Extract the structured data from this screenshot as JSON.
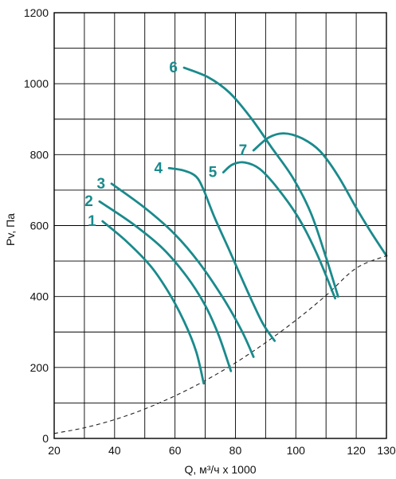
{
  "chart_data": {
    "type": "line",
    "title": "",
    "xlabel": "Q, м³/ч х 1000",
    "ylabel": "Pv, Па",
    "xlim": [
      20,
      130
    ],
    "ylim": [
      0,
      1200
    ],
    "x_ticks": [
      20,
      40,
      60,
      80,
      100,
      120,
      130
    ],
    "y_ticks": [
      0,
      200,
      400,
      600,
      800,
      1000,
      1200
    ],
    "x_tick_labels": [
      "20",
      "40",
      "60",
      "80",
      "100",
      "120",
      "130"
    ],
    "y_tick_labels": [
      "0",
      "200",
      "400",
      "600",
      "800",
      "1000",
      "1200"
    ],
    "grid": true,
    "curve_color": "#1a8a8c",
    "system_curve_color": "#222222",
    "series": [
      {
        "label": "1",
        "points": [
          [
            36,
            612
          ],
          [
            44,
            555
          ],
          [
            52,
            485
          ],
          [
            58,
            410
          ],
          [
            63,
            330
          ],
          [
            67,
            245
          ],
          [
            69.5,
            155
          ]
        ]
      },
      {
        "label": "2",
        "points": [
          [
            35,
            668
          ],
          [
            46,
            605
          ],
          [
            56,
            535
          ],
          [
            64,
            455
          ],
          [
            70,
            375
          ],
          [
            74.5,
            290
          ],
          [
            78.5,
            190
          ]
        ]
      },
      {
        "label": "3",
        "points": [
          [
            39,
            718
          ],
          [
            50,
            650
          ],
          [
            60,
            575
          ],
          [
            68,
            495
          ],
          [
            76,
            395
          ],
          [
            82,
            305
          ],
          [
            86,
            230
          ]
        ]
      },
      {
        "label": "4",
        "points": [
          [
            58,
            762
          ],
          [
            63,
            755
          ],
          [
            67,
            738
          ],
          [
            69.5,
            700
          ],
          [
            73,
            625
          ],
          [
            78,
            530
          ],
          [
            84,
            415
          ],
          [
            89,
            325
          ],
          [
            93,
            275
          ]
        ]
      },
      {
        "label": "5",
        "points": [
          [
            76,
            750
          ],
          [
            79,
            772
          ],
          [
            83,
            778
          ],
          [
            88,
            760
          ],
          [
            94,
            705
          ],
          [
            101,
            620
          ],
          [
            107,
            520
          ],
          [
            113,
            395
          ]
        ]
      },
      {
        "label": "6",
        "points": [
          [
            63,
            1045
          ],
          [
            71,
            1018
          ],
          [
            78,
            975
          ],
          [
            85,
            905
          ],
          [
            92,
            820
          ],
          [
            99,
            735
          ],
          [
            105,
            635
          ],
          [
            110,
            510
          ],
          [
            114,
            400
          ]
        ]
      },
      {
        "label": "7",
        "points": [
          [
            86,
            812
          ],
          [
            91,
            848
          ],
          [
            96,
            860
          ],
          [
            102,
            846
          ],
          [
            108,
            810
          ],
          [
            114,
            740
          ],
          [
            120,
            650
          ],
          [
            125,
            580
          ],
          [
            130,
            515
          ]
        ]
      }
    ],
    "system_curve": {
      "style": "dashed",
      "points": [
        [
          20,
          14
        ],
        [
          30,
          30
        ],
        [
          40,
          53
        ],
        [
          50,
          83
        ],
        [
          60,
          120
        ],
        [
          70,
          163
        ],
        [
          80,
          213
        ],
        [
          90,
          270
        ],
        [
          100,
          333
        ],
        [
          110,
          403
        ],
        [
          120,
          480
        ],
        [
          130,
          515
        ]
      ]
    }
  }
}
